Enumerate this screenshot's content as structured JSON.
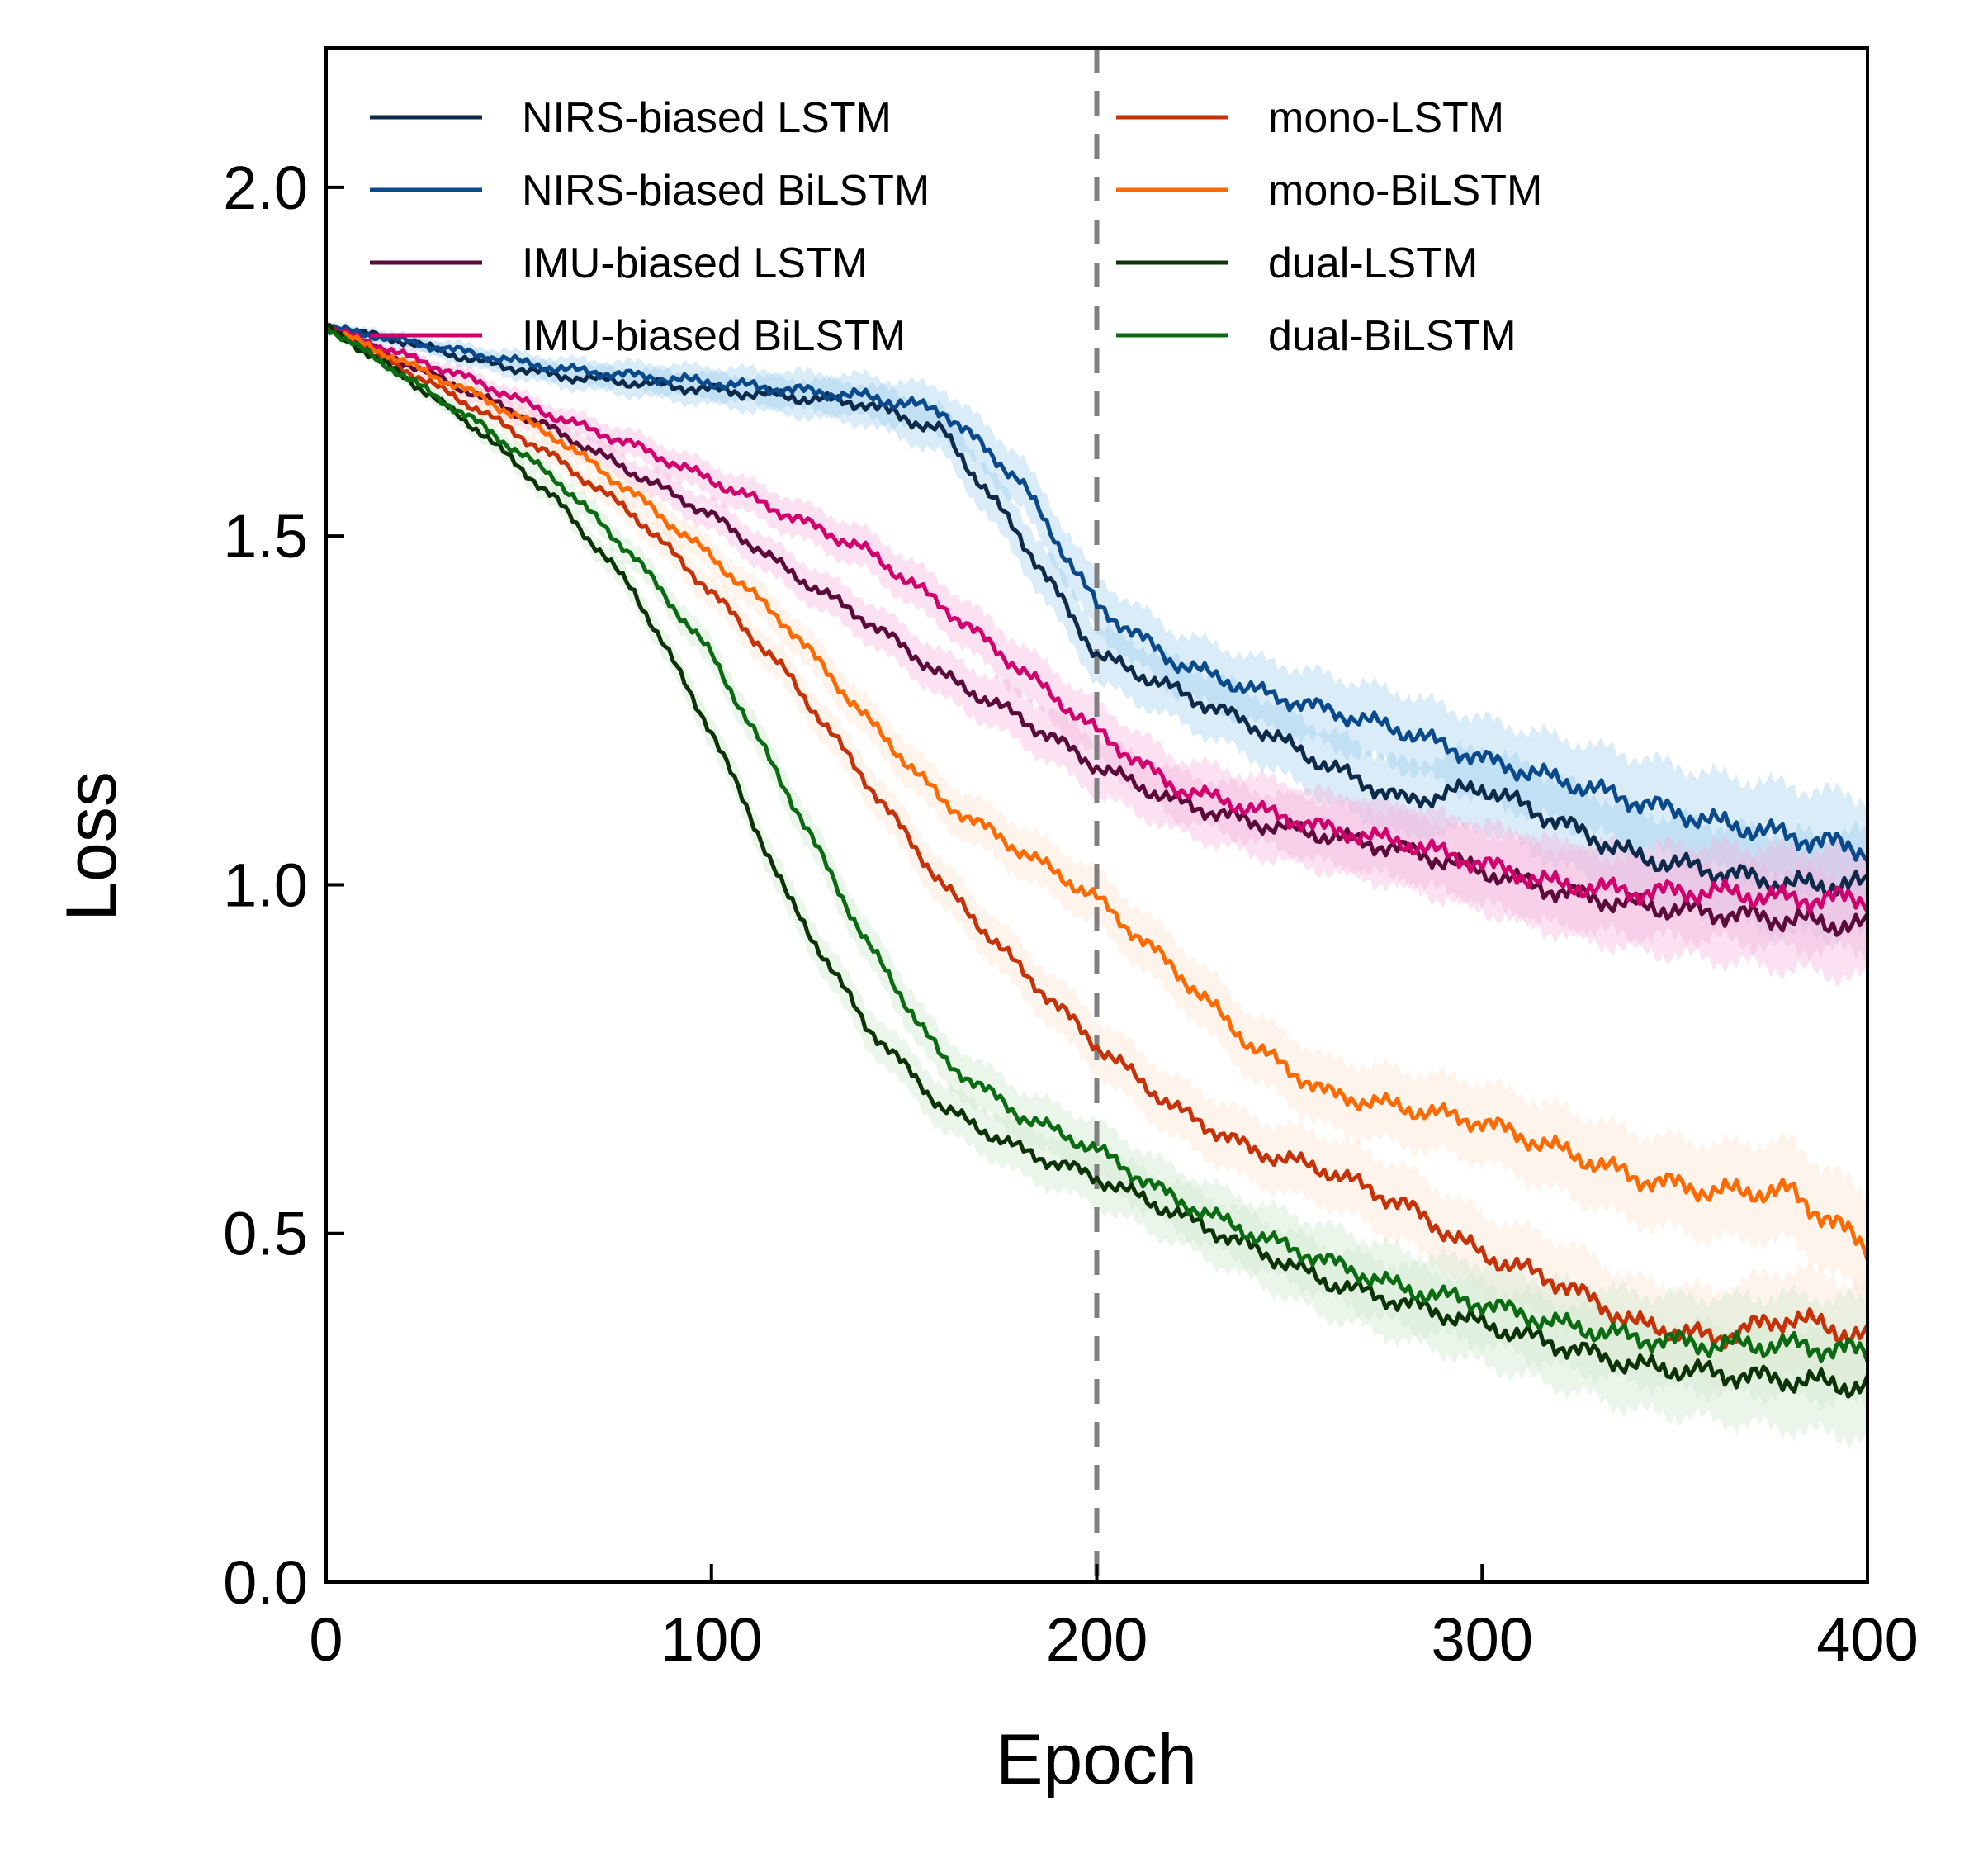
{
  "chart_data": {
    "type": "line",
    "title": "",
    "xlabel": "Epoch",
    "ylabel": "Loss",
    "xlim": [
      0,
      400
    ],
    "ylim": [
      0,
      2.2
    ],
    "xticks": [
      "0",
      "100",
      "200",
      "300",
      "400"
    ],
    "yticks": [
      "0.0",
      "0.5",
      "1.0",
      "1.5",
      "2.0"
    ],
    "grid": false,
    "legend_position": "top, two columns",
    "vertical_reference_line": {
      "x": 200,
      "style": "dashed",
      "color": "#808080"
    },
    "x": [
      0,
      20,
      40,
      60,
      80,
      100,
      120,
      140,
      160,
      180,
      200,
      220,
      240,
      260,
      280,
      300,
      320,
      340,
      360,
      380,
      400
    ],
    "series": [
      {
        "name": "NIRS-biased LSTM",
        "color": "#0d2a4a",
        "band": "#9fd0ee",
        "values": [
          1.8,
          1.78,
          1.75,
          1.73,
          1.72,
          1.71,
          1.7,
          1.69,
          1.65,
          1.5,
          1.33,
          1.28,
          1.23,
          1.17,
          1.12,
          1.14,
          1.09,
          1.04,
          1.02,
          1.0,
          1.0
        ]
      },
      {
        "name": "NIRS-biased BiLSTM",
        "color": "#0a4a8c",
        "band": "#9fd0ee",
        "values": [
          1.8,
          1.78,
          1.76,
          1.74,
          1.73,
          1.72,
          1.71,
          1.7,
          1.68,
          1.58,
          1.4,
          1.32,
          1.28,
          1.25,
          1.22,
          1.18,
          1.15,
          1.12,
          1.09,
          1.07,
          1.05
        ]
      },
      {
        "name": "IMU-biased LSTM",
        "color": "#5c0a3a",
        "band": "#f4b3dd",
        "values": [
          1.8,
          1.75,
          1.7,
          1.65,
          1.59,
          1.53,
          1.45,
          1.38,
          1.3,
          1.24,
          1.17,
          1.12,
          1.09,
          1.07,
          1.05,
          1.02,
          0.99,
          0.97,
          0.96,
          0.95,
          0.94
        ]
      },
      {
        "name": "IMU-biased BiLSTM",
        "color": "#d1006c",
        "band": "#f4b3dd",
        "values": [
          1.8,
          1.76,
          1.72,
          1.67,
          1.63,
          1.58,
          1.53,
          1.48,
          1.4,
          1.31,
          1.22,
          1.14,
          1.11,
          1.08,
          1.06,
          1.03,
          1.0,
          0.99,
          0.99,
          0.98,
          0.98
        ]
      },
      {
        "name": "mono-LSTM",
        "color": "#c73108",
        "band": "#fde3cf",
        "values": [
          1.8,
          1.74,
          1.68,
          1.61,
          1.53,
          1.42,
          1.3,
          1.15,
          1.0,
          0.88,
          0.77,
          0.68,
          0.62,
          0.59,
          0.54,
          0.47,
          0.43,
          0.37,
          0.35,
          0.38,
          0.35
        ]
      },
      {
        "name": "mono-BiLSTM",
        "color": "#ff6a00",
        "band": "#fde3cf",
        "values": [
          1.8,
          1.75,
          1.7,
          1.64,
          1.56,
          1.47,
          1.37,
          1.24,
          1.12,
          1.05,
          0.98,
          0.88,
          0.77,
          0.7,
          0.68,
          0.66,
          0.62,
          0.58,
          0.56,
          0.56,
          0.48
        ]
      },
      {
        "name": "dual-LSTM",
        "color": "#0c3306",
        "band": "#cde9cc",
        "values": [
          1.8,
          1.73,
          1.65,
          1.55,
          1.42,
          1.22,
          0.98,
          0.8,
          0.68,
          0.62,
          0.58,
          0.53,
          0.48,
          0.43,
          0.4,
          0.37,
          0.34,
          0.31,
          0.3,
          0.29,
          0.28
        ]
      },
      {
        "name": "dual-BiLSTM",
        "color": "#0b6b12",
        "band": "#cde9cc",
        "values": [
          1.8,
          1.73,
          1.66,
          1.58,
          1.47,
          1.33,
          1.13,
          0.92,
          0.75,
          0.67,
          0.62,
          0.55,
          0.5,
          0.46,
          0.42,
          0.4,
          0.37,
          0.35,
          0.34,
          0.34,
          0.33
        ]
      }
    ]
  }
}
